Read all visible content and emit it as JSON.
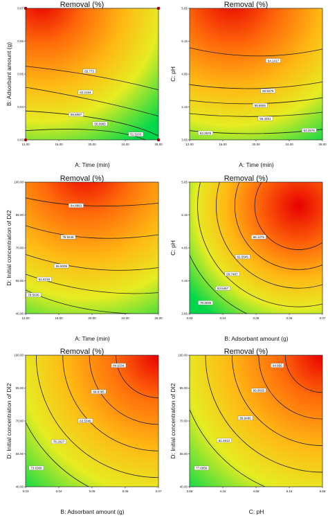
{
  "chart_data": [
    {
      "type": "contour",
      "title": "Removal (%)",
      "xlabel": "A: Time (min)",
      "ylabel": "B: Adsorbant amount (g)",
      "x_ticks": [
        "12.00",
        "16.00",
        "20.00",
        "24.00",
        "28.00"
      ],
      "y_ticks": [
        "0.03",
        "0.04",
        "0.05",
        "0.06",
        "0.07"
      ],
      "xlim": [
        12,
        28
      ],
      "ylim": [
        0.03,
        0.07
      ],
      "contour_labels": [
        "65.773",
        "62.2164",
        "58.6067",
        "55.0983",
        "51.5203"
      ],
      "design_points": [
        [
          12,
          0.07
        ],
        [
          28,
          0.07
        ],
        [
          12,
          0.03
        ],
        [
          28,
          0.03
        ]
      ],
      "color_scale": [
        "#00d84a",
        "#f6ee1e",
        "#ff9e10",
        "#ec0000"
      ]
    },
    {
      "type": "contour",
      "title": "Removal (%)",
      "xlabel": "A: Time (min)",
      "ylabel": "C: pH",
      "x_ticks": [
        "12.00",
        "16.00",
        "20.00",
        "24.00",
        "28.00"
      ],
      "y_ticks": [
        "3.65",
        "4.15",
        "4.65",
        "5.15",
        "5.65"
      ],
      "xlim": [
        12,
        28
      ],
      "ylim": [
        3.65,
        5.65
      ],
      "contour_labels": [
        "64.1417",
        "60.9276",
        "59.6926",
        "56.4251",
        "53.2576",
        "53.2576"
      ],
      "color_scale": [
        "#00d84a",
        "#f6ee1e",
        "#ff9e10",
        "#ec0000"
      ]
    },
    {
      "type": "contour",
      "title": "Removal (%)",
      "xlabel": "A: Time (min)",
      "ylabel": "D: Initial concentration of DI2",
      "x_ticks": [
        "12.00",
        "16.00",
        "20.00",
        "24.00",
        "28.00"
      ],
      "y_ticks": [
        "40.00",
        "55.00",
        "70.00",
        "85.00",
        "100.00"
      ],
      "xlim": [
        12,
        28
      ],
      "ylim": [
        40,
        100
      ],
      "contour_labels": [
        "84.8883",
        "78.9245",
        "55.5009",
        "51.6218",
        "78.5636"
      ],
      "color_scale": [
        "#00d84a",
        "#f6ee1e",
        "#ff9e10",
        "#ec0000"
      ]
    },
    {
      "type": "contour",
      "title": "Removal (%)",
      "xlabel": "B: Adsorbant amount (g)",
      "ylabel": "C: pH",
      "x_ticks": [
        "0.03",
        "0.04",
        "0.05",
        "0.06",
        "0.07"
      ],
      "y_ticks": [
        "3.65",
        "4.15",
        "4.65",
        "5.15",
        "5.65"
      ],
      "xlim": [
        0.03,
        0.07
      ],
      "ylim": [
        3.65,
        5.65
      ],
      "contour_labels": [
        "65.1276",
        "62.5545",
        "56.7487",
        "53.5467",
        "78.3935"
      ],
      "color_scale": [
        "#00d84a",
        "#f6ee1e",
        "#ff9e10",
        "#ec0000"
      ]
    },
    {
      "type": "contour",
      "title": "Removal (%)",
      "xlabel": "B: Adsorbant amount (g)",
      "ylabel": "D: Initial concentration of DI2",
      "x_ticks": [
        "0.03",
        "0.04",
        "0.05",
        "0.06",
        "0.07"
      ],
      "y_ticks": [
        "40.00",
        "55.00",
        "70.00",
        "85.00",
        "100.00"
      ],
      "xlim": [
        0.03,
        0.07
      ],
      "ylim": [
        40,
        100
      ],
      "contour_labels": [
        "84.6334",
        "68.8785",
        "63.5349",
        "78.2627",
        "73.6368"
      ],
      "color_scale": [
        "#00d84a",
        "#f6ee1e",
        "#ff9e10",
        "#ec0000"
      ]
    },
    {
      "type": "contour",
      "title": "Removal (%)",
      "xlabel": "C: pH",
      "ylabel": "D: Initial concentration of DI2",
      "x_ticks": [
        "3.65",
        "4.15",
        "4.65",
        "5.15",
        "5.65"
      ],
      "y_ticks": [
        "40.00",
        "55.00",
        "70.00",
        "85.00",
        "100.00"
      ],
      "xlim": [
        3.65,
        5.65
      ],
      "ylim": [
        40,
        100
      ],
      "contour_labels": [
        "84.856",
        "68.9035",
        "58.9496",
        "61.4913",
        "77.6956"
      ],
      "color_scale": [
        "#00d84a",
        "#f6ee1e",
        "#ff9e10",
        "#ec0000"
      ]
    }
  ]
}
